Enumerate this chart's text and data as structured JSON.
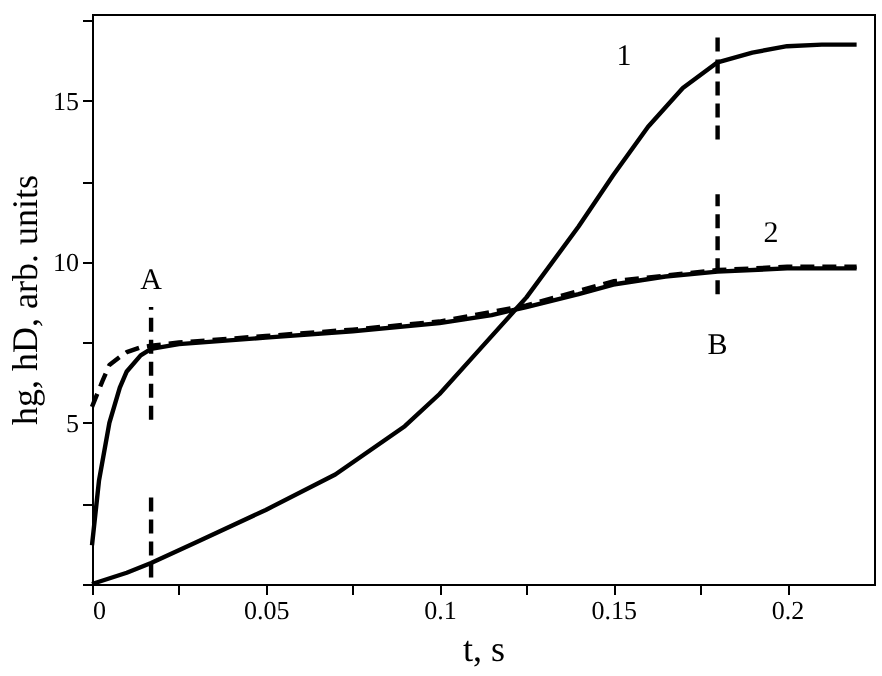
{
  "chart_data": {
    "type": "line",
    "xlabel": "t, s",
    "ylabel": "hg, hD, arb. units",
    "xlim": [
      0,
      0.225
    ],
    "ylim": [
      0,
      17.7
    ],
    "xticks": [
      0,
      {
        "value": 0.025,
        "label": null
      },
      0.05,
      {
        "value": 0.075,
        "label": null
      },
      0.1,
      {
        "value": 0.125,
        "label": null
      },
      0.15,
      {
        "value": 0.175,
        "label": null
      },
      0.2
    ],
    "yticks": [
      {
        "value": 0,
        "label": null
      },
      {
        "value": 2.5,
        "label": null
      },
      5,
      {
        "value": 7.5,
        "label": null
      },
      10,
      {
        "value": 12.5,
        "label": null
      },
      15,
      {
        "value": 17.5,
        "label": null
      }
    ],
    "grid": false,
    "marker": "none",
    "series": [
      {
        "color": "#000000",
        "line_style": "solid",
        "x": [
          0,
          0.01,
          0.017,
          0.03,
          0.05,
          0.07,
          0.09,
          0.1,
          0.11,
          0.125,
          0.14,
          0.15,
          0.16,
          0.17,
          0.18,
          0.19,
          0.2,
          0.21,
          0.22
        ],
        "values": [
          0,
          0.35,
          0.65,
          1.3,
          2.3,
          3.4,
          4.9,
          5.9,
          7.1,
          8.9,
          11.1,
          12.7,
          14.2,
          15.4,
          16.2,
          16.5,
          16.7,
          16.75,
          16.75
        ]
      },
      {
        "color": "#000000",
        "line_style": "solid",
        "x": [
          0,
          0.002,
          0.005,
          0.008,
          0.01,
          0.014,
          0.017,
          0.025,
          0.05,
          0.075,
          0.1,
          0.115,
          0.125,
          0.14,
          0.15,
          0.165,
          0.18,
          0.2,
          0.22
        ],
        "values": [
          1.2,
          3.2,
          5.0,
          6.1,
          6.6,
          7.1,
          7.3,
          7.45,
          7.65,
          7.85,
          8.1,
          8.35,
          8.6,
          9.0,
          9.3,
          9.55,
          9.7,
          9.8,
          9.8
        ]
      },
      {
        "color": "#000000",
        "line_style": "dashed",
        "x": [
          0,
          0.003,
          0.005,
          0.008,
          0.01,
          0.014,
          0.017,
          0.025,
          0.05,
          0.075,
          0.1,
          0.125,
          0.15,
          0.18,
          0.2,
          0.22
        ],
        "values": [
          5.5,
          6.3,
          6.8,
          7.05,
          7.2,
          7.35,
          7.4,
          7.5,
          7.7,
          7.9,
          8.15,
          8.65,
          9.4,
          9.75,
          9.85,
          9.85
        ]
      },
      {
        "color": "#000000",
        "line_style": "dashed",
        "x": [
          0.017,
          0.017
        ],
        "values": [
          5.1,
          8.6
        ]
      },
      {
        "color": "#000000",
        "line_style": "dashed",
        "x": [
          0.017,
          0.017
        ],
        "values": [
          0.2,
          2.9
        ]
      },
      {
        "color": "#000000",
        "line_style": "dashed",
        "x": [
          0.18,
          0.18
        ],
        "values": [
          13.8,
          17.0
        ]
      },
      {
        "color": "#000000",
        "line_style": "dashed",
        "x": [
          0.18,
          0.18
        ],
        "values": [
          9.0,
          12.1
        ]
      }
    ],
    "annotations": [
      {
        "text": "A",
        "x": 0.017,
        "y": 8.6
      },
      {
        "text": "B",
        "x": 0.18,
        "y": 9.0
      },
      {
        "text": "1",
        "x": 0.16,
        "y": 14.2
      },
      {
        "text": "2",
        "x": 0.2,
        "y": 9.8
      }
    ]
  }
}
